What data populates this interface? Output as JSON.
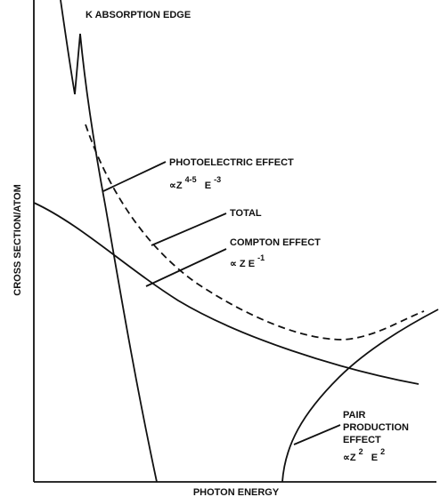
{
  "axes": {
    "y_label": "CROSS SECTION/ATOM",
    "x_label": "PHOTON ENERGY"
  },
  "annotations": {
    "k_edge": {
      "label": "K ABSORPTION EDGE"
    },
    "photoelectric": {
      "label": "PHOTOELECTRIC EFFECT",
      "formula": [
        "∝Z",
        "4-5",
        "E",
        "-3"
      ]
    },
    "total": {
      "label": "TOTAL"
    },
    "compton": {
      "label": "COMPTON EFFECT",
      "formula": [
        "∝ Z E",
        "-1"
      ]
    },
    "pair": {
      "label": [
        "PAIR",
        "PRODUCTION",
        "EFFECT"
      ],
      "formula": [
        "∝Z",
        "2",
        "E",
        "2"
      ]
    }
  }
}
